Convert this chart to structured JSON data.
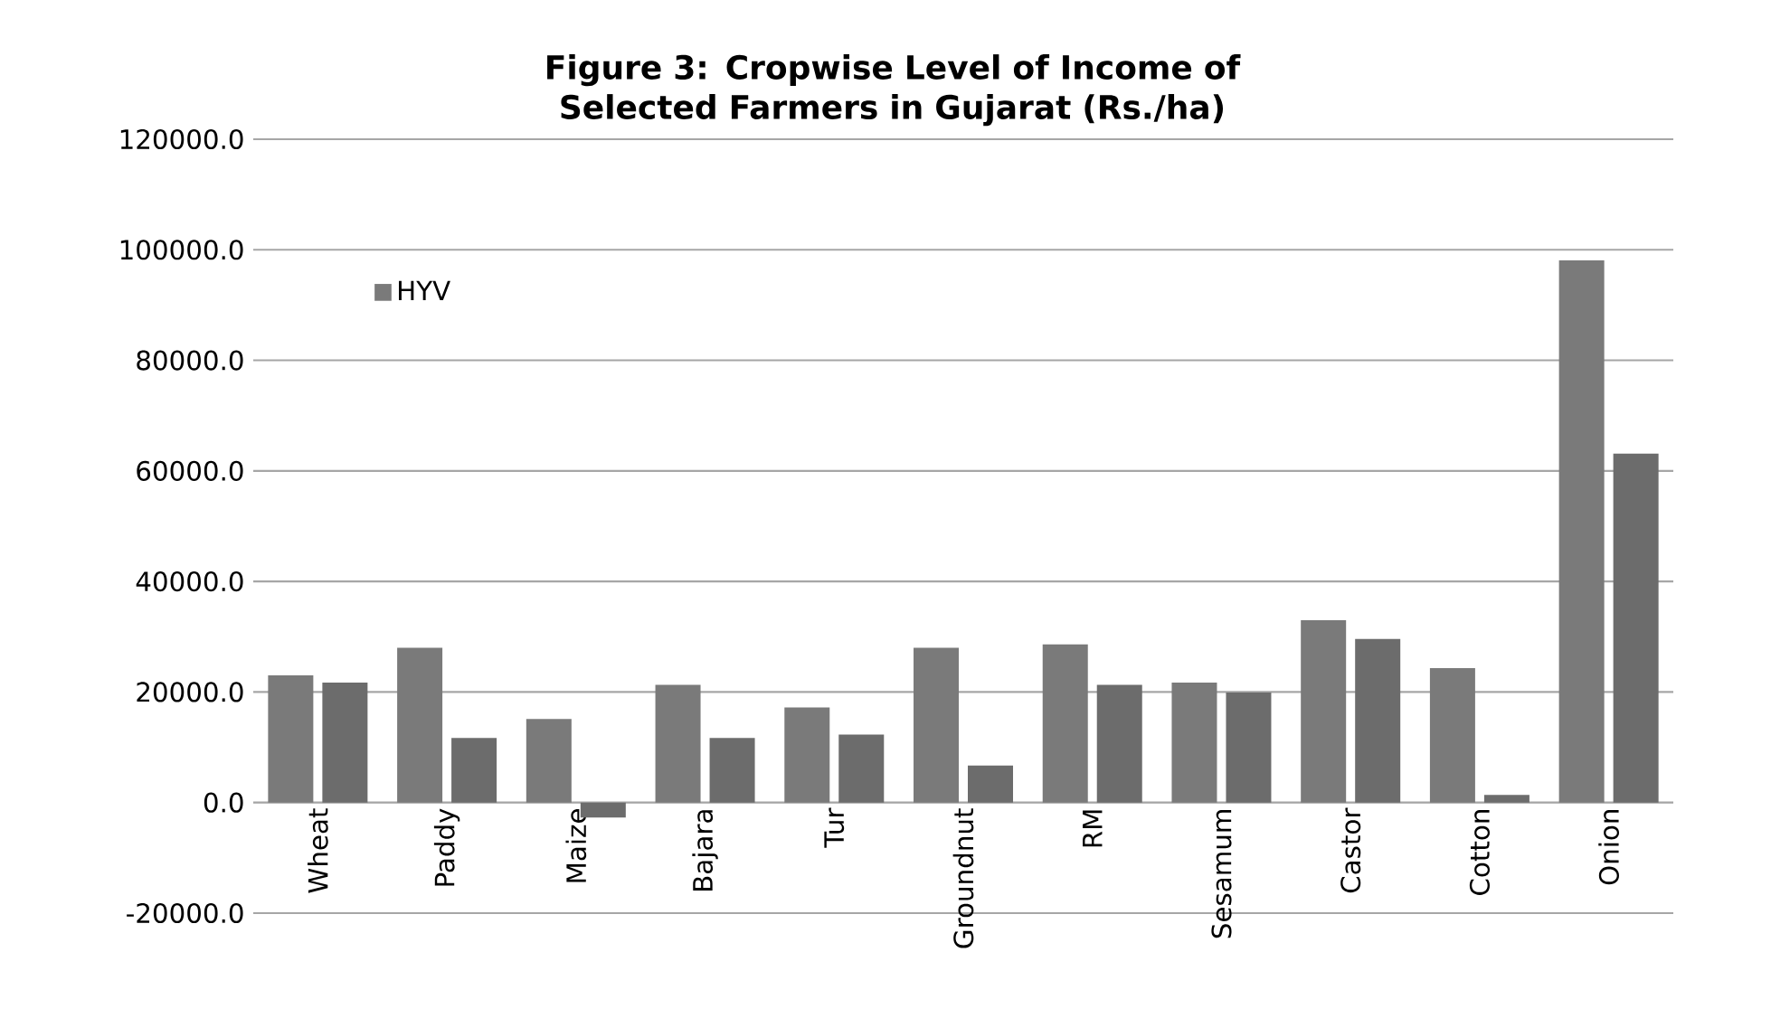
{
  "chart_data": {
    "type": "bar",
    "title": "Figure 3: Cropwise Level of Income of Selected Farmers in Gujarat (Rs./ha)",
    "categories": [
      "Wheat",
      "Paddy",
      "Maize",
      "Bajara",
      "Tur",
      "Groundnut",
      "RM",
      "Sesamum",
      "Castor",
      "Cotton",
      "Onion"
    ],
    "series": [
      {
        "name": "HYV",
        "color": "#7a7a7a",
        "values": [
          23000,
          28000,
          15100,
          21300,
          17200,
          28000,
          28600,
          21700,
          33000,
          24300,
          98100
        ]
      },
      {
        "color": "#6c6c6c",
        "values": [
          21700,
          11700,
          -2700,
          11700,
          12300,
          6700,
          21300,
          19900,
          29600,
          1400,
          63100
        ]
      }
    ],
    "ylim": [
      -20000,
      120000
    ],
    "yticks": [
      {
        "value": -20000,
        "label": "-20000.0"
      },
      {
        "value": 0,
        "label": "0.0"
      },
      {
        "value": 20000,
        "label": "20000.0"
      },
      {
        "value": 40000,
        "label": "40000.0"
      },
      {
        "value": 60000,
        "label": "60000.0"
      },
      {
        "value": 80000,
        "label": "80000.0"
      },
      {
        "value": 100000,
        "label": "100000.0"
      },
      {
        "value": 120000,
        "label": "120000.0"
      }
    ],
    "grid": "y",
    "legend": "top left"
  }
}
